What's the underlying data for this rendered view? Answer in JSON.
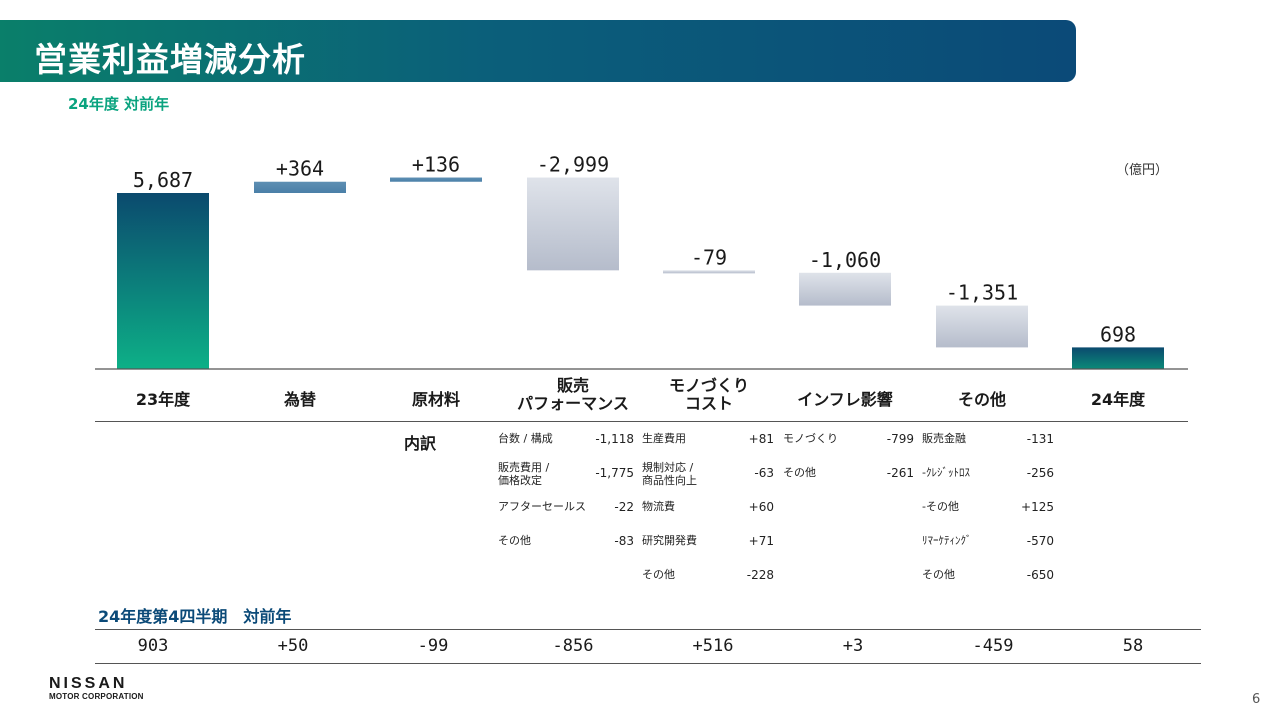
{
  "header": {
    "title": "営業利益増減分析",
    "subtitle": "24年度 対前年",
    "unit": "（億円）"
  },
  "chart_data": {
    "type": "bar",
    "categories": [
      "23年度",
      "為替",
      "原材料",
      "販売\nパフォーマンス",
      "モノづくり\nコスト",
      "インフレ影響",
      "その他",
      "24年度"
    ],
    "values": [
      5687,
      364,
      136,
      -2999,
      -79,
      -1060,
      -1351,
      698
    ],
    "value_labels": [
      "5,687",
      "+364",
      "+136",
      "-2,999",
      "-79",
      "-1,060",
      "-1,351",
      "698"
    ]
  },
  "breakdown": {
    "label": "内訳",
    "sales_performance": [
      {
        "name": "台数 / 構成",
        "value": "-1,118"
      },
      {
        "name": "販売費用 /\n価格改定",
        "value": "-1,775"
      },
      {
        "name": "アフターセールス",
        "value": "-22"
      },
      {
        "name": "その他",
        "value": "-83"
      }
    ],
    "monozukuri": [
      {
        "name": "生産費用",
        "value": "+81"
      },
      {
        "name": "規制対応 /\n商品性向上",
        "value": "-63"
      },
      {
        "name": "物流費",
        "value": "+60"
      },
      {
        "name": "研究開発費",
        "value": "+71"
      },
      {
        "name": "その他",
        "value": "-228"
      }
    ],
    "inflation": [
      {
        "name": "モノづくり",
        "value": "-799"
      },
      {
        "name": "その他",
        "value": "-261"
      }
    ],
    "other": [
      {
        "name": "販売金融",
        "value": "-131"
      },
      {
        "name": "-ｸﾚｼﾞｯﾄﾛｽ",
        "value": "-256"
      },
      {
        "name": "-その他",
        "value": "+125"
      },
      {
        "name": "ﾘﾏｰｹﾃｨﾝｸﾞ",
        "value": "-570"
      },
      {
        "name": "その他",
        "value": "-650"
      }
    ]
  },
  "q4": {
    "title": "24年度第4四半期　対前年",
    "values": [
      "903",
      "+50",
      "-99",
      "-856",
      "+516",
      "+3",
      "-459",
      "58"
    ]
  },
  "footer": {
    "logo_main": "NISSAN",
    "logo_sub": "MOTOR CORPORATION",
    "page_number": "6"
  }
}
